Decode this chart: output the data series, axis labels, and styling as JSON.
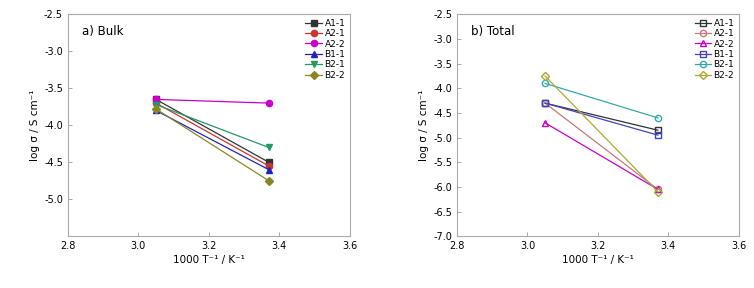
{
  "bulk": {
    "title": "a) Bulk",
    "xlabel": "1000 T⁻¹ / K⁻¹",
    "ylabel": "log σ / S cm⁻¹",
    "xlim": [
      2.8,
      3.6
    ],
    "ylim": [
      -5.5,
      -2.5
    ],
    "yticks": [
      -5.0,
      -4.5,
      -4.0,
      -3.5,
      -3.0,
      -2.5
    ],
    "xticks": [
      2.8,
      3.0,
      3.2,
      3.4,
      3.6
    ],
    "series": [
      {
        "label": "A1-1",
        "color": "#333333",
        "marker": "s",
        "filled": true,
        "x": [
          3.05,
          3.37
        ],
        "y": [
          -3.65,
          -4.5
        ]
      },
      {
        "label": "A2-1",
        "color": "#cc3333",
        "marker": "o",
        "filled": true,
        "x": [
          3.05,
          3.37
        ],
        "y": [
          -3.7,
          -4.55
        ]
      },
      {
        "label": "A2-2",
        "color": "#cc00cc",
        "marker": "o",
        "filled": true,
        "x": [
          3.05,
          3.37
        ],
        "y": [
          -3.65,
          -3.7
        ]
      },
      {
        "label": "B1-1",
        "color": "#2222bb",
        "marker": "^",
        "filled": true,
        "x": [
          3.05,
          3.37
        ],
        "y": [
          -3.8,
          -4.6
        ]
      },
      {
        "label": "B2-1",
        "color": "#229966",
        "marker": "v",
        "filled": true,
        "x": [
          3.05,
          3.37
        ],
        "y": [
          -3.72,
          -4.3
        ]
      },
      {
        "label": "B2-2",
        "color": "#888822",
        "marker": "D",
        "filled": true,
        "x": [
          3.05,
          3.37
        ],
        "y": [
          -3.78,
          -4.75
        ]
      }
    ]
  },
  "total": {
    "title": "b) Total",
    "xlabel": "1000 T⁻¹ / K⁻¹",
    "ylabel": "log σ / S cm⁻¹",
    "xlim": [
      2.8,
      3.6
    ],
    "ylim": [
      -7.0,
      -2.5
    ],
    "yticks": [
      -7.0,
      -6.5,
      -6.0,
      -5.5,
      -5.0,
      -4.5,
      -4.0,
      -3.5,
      -3.0,
      -2.5
    ],
    "xticks": [
      2.8,
      3.0,
      3.2,
      3.4,
      3.6
    ],
    "series": [
      {
        "label": "A1-1",
        "color": "#333333",
        "marker": "s",
        "filled": false,
        "x": [
          3.05,
          3.37
        ],
        "y": [
          -4.3,
          -4.85
        ]
      },
      {
        "label": "A2-1",
        "color": "#cc7777",
        "marker": "o",
        "filled": false,
        "x": [
          3.05,
          3.37
        ],
        "y": [
          -4.3,
          -6.05
        ]
      },
      {
        "label": "A2-2",
        "color": "#cc00cc",
        "marker": "^",
        "filled": false,
        "x": [
          3.05,
          3.37
        ],
        "y": [
          -4.7,
          -6.05
        ]
      },
      {
        "label": "B1-1",
        "color": "#4444bb",
        "marker": "s",
        "filled": false,
        "x": [
          3.05,
          3.37
        ],
        "y": [
          -4.3,
          -4.95
        ]
      },
      {
        "label": "B2-1",
        "color": "#33aaaa",
        "marker": "o",
        "filled": false,
        "x": [
          3.05,
          3.37
        ],
        "y": [
          -3.9,
          -4.6
        ]
      },
      {
        "label": "B2-2",
        "color": "#aaaa33",
        "marker": "D",
        "filled": false,
        "x": [
          3.05,
          3.37
        ],
        "y": [
          -3.75,
          -6.1
        ]
      }
    ]
  },
  "bg": "#ffffff",
  "fontsize": 7.5,
  "linewidth": 0.9,
  "markersize": 4.5
}
